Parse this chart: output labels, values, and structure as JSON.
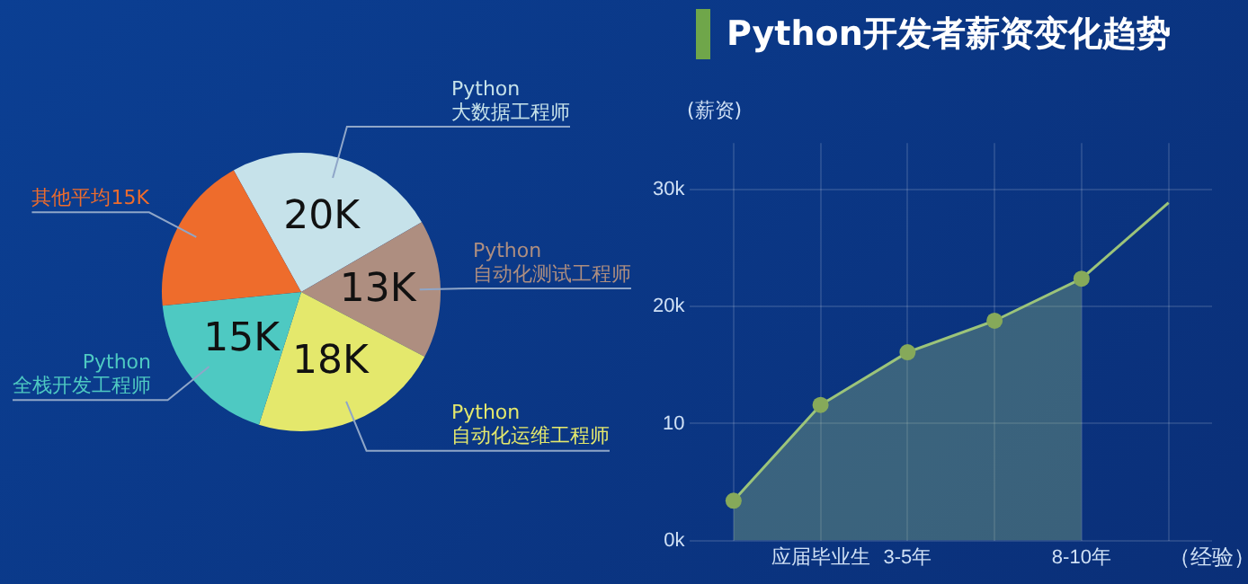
{
  "chart_data": [
    {
      "type": "pie",
      "categories": [
        "Python 大数据工程师",
        "Python 自动化测试工程师",
        "Python 自动化运维工程师",
        "Python 全栈开发工程师",
        "其他平均15K"
      ],
      "values": [
        20,
        13,
        18,
        15,
        15
      ],
      "colors": [
        "#c6e2ea",
        "#ae8e80",
        "#e4e86c",
        "#4ec9c2",
        "#ee6c2c"
      ],
      "value_labels": [
        "20K",
        "13K",
        "18K",
        "15K",
        null
      ],
      "legend": false
    },
    {
      "type": "area",
      "title": "Python开发者薪资变化趋势",
      "ylabel": "(薪资)",
      "xlabel": "（经验）",
      "categories": [
        null,
        "应届毕业生",
        "3-5年",
        null,
        "8-10年",
        null
      ],
      "series": [
        {
          "type": "area",
          "color": "#9cc47a",
          "values": [
            3.4,
            11.6,
            16.1,
            18.8,
            22.4,
            null
          ],
          "marker": "circle"
        },
        {
          "type": "line",
          "color": "#9cc47a",
          "values": [
            null,
            null,
            null,
            null,
            22.4,
            28.9
          ]
        }
      ],
      "ylim": [
        0,
        34
      ],
      "yticks": [
        {
          "value": 0,
          "label": "0k"
        },
        10,
        {
          "value": 20,
          "label": "20k"
        },
        {
          "value": 30,
          "label": "30k"
        }
      ],
      "grid": true,
      "legend": false
    }
  ]
}
